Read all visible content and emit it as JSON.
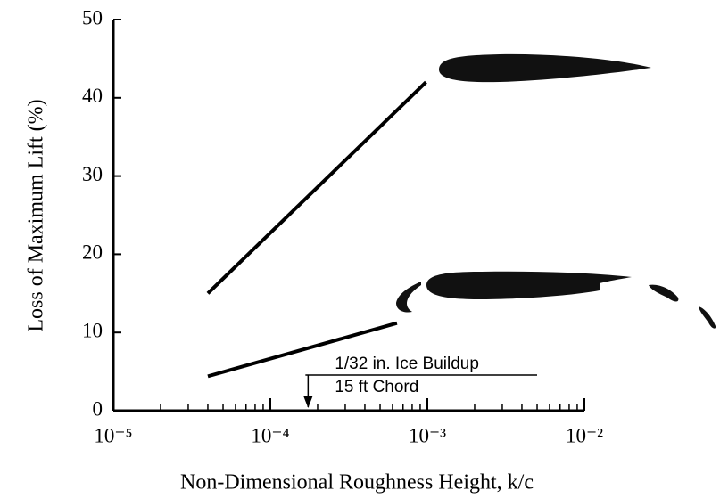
{
  "chart_data": {
    "type": "line",
    "xlabel": "Non-Dimensional Roughness Height,  k/c",
    "ylabel": "Loss of Maximum Lift (%)",
    "xscale": "log",
    "xlim": [
      1e-05,
      0.01
    ],
    "xticks": [
      {
        "value": 1e-05,
        "label": "10⁻⁵"
      },
      {
        "value": 0.0001,
        "label": "10⁻⁴"
      },
      {
        "value": 0.001,
        "label": "10⁻³"
      },
      {
        "value": 0.01,
        "label": "10⁻²"
      }
    ],
    "ylim": [
      0,
      50
    ],
    "yticks": [
      0,
      10,
      20,
      30,
      40,
      50
    ],
    "series": [
      {
        "color": "#000000",
        "x": [
          4e-05,
          0.00098
        ],
        "values": [
          15,
          42
        ]
      },
      {
        "color": "#000000",
        "x": [
          4e-05,
          0.00064
        ],
        "values": [
          4.4,
          11.2
        ]
      }
    ],
    "annotation": {
      "line1": "1/32 in. Ice Buildup",
      "line2": "15 ft Chord",
      "x": 0.000174
    }
  }
}
